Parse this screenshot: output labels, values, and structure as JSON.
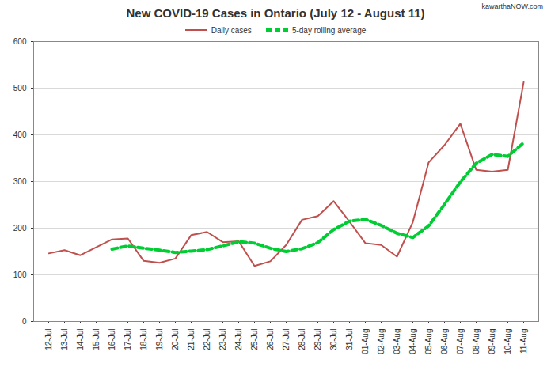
{
  "chart_data": {
    "type": "line",
    "title": "New COVID-19 Cases in Ontario (July 12 - August 11)",
    "annotations": [
      "kawarthaNOW.com"
    ],
    "categories": [
      "12-Jul",
      "13-Jul",
      "14-Jul",
      "15-Jul",
      "16-Jul",
      "17-Jul",
      "18-Jul",
      "19-Jul",
      "20-Jul",
      "21-Jul",
      "22-Jul",
      "23-Jul",
      "24-Jul",
      "25-Jul",
      "26-Jul",
      "27-Jul",
      "28-Jul",
      "29-Jul",
      "30-Jul",
      "31-Jul",
      "01-Aug",
      "02-Aug",
      "03-Aug",
      "04-Aug",
      "05-Aug",
      "06-Aug",
      "07-Aug",
      "08-Aug",
      "09-Aug",
      "10-Aug",
      "11-Aug"
    ],
    "series": [
      {
        "name": "Daily cases",
        "color": "#c0504d",
        "line_style": "solid",
        "values": [
          146,
          153,
          142,
          159,
          176,
          178,
          130,
          126,
          135,
          185,
          192,
          170,
          172,
          119,
          129,
          164,
          218,
          226,
          258,
          214,
          168,
          164,
          139,
          213,
          341,
          378,
          424,
          325,
          321,
          325,
          513
        ]
      },
      {
        "name": "5-day rolling average",
        "color": "#00cc33",
        "line_style": "dashed",
        "values": [
          null,
          null,
          null,
          null,
          155,
          162,
          157,
          153,
          148,
          151,
          154,
          162,
          171,
          168,
          157,
          150,
          156,
          169,
          197,
          215,
          219,
          206,
          189,
          180,
          205,
          251,
          299,
          339,
          358,
          354,
          383
        ]
      }
    ],
    "ylim": [
      0,
      600
    ],
    "yticks": [
      0,
      100,
      200,
      300,
      400,
      500,
      600
    ],
    "grid": true,
    "legend": "top"
  }
}
